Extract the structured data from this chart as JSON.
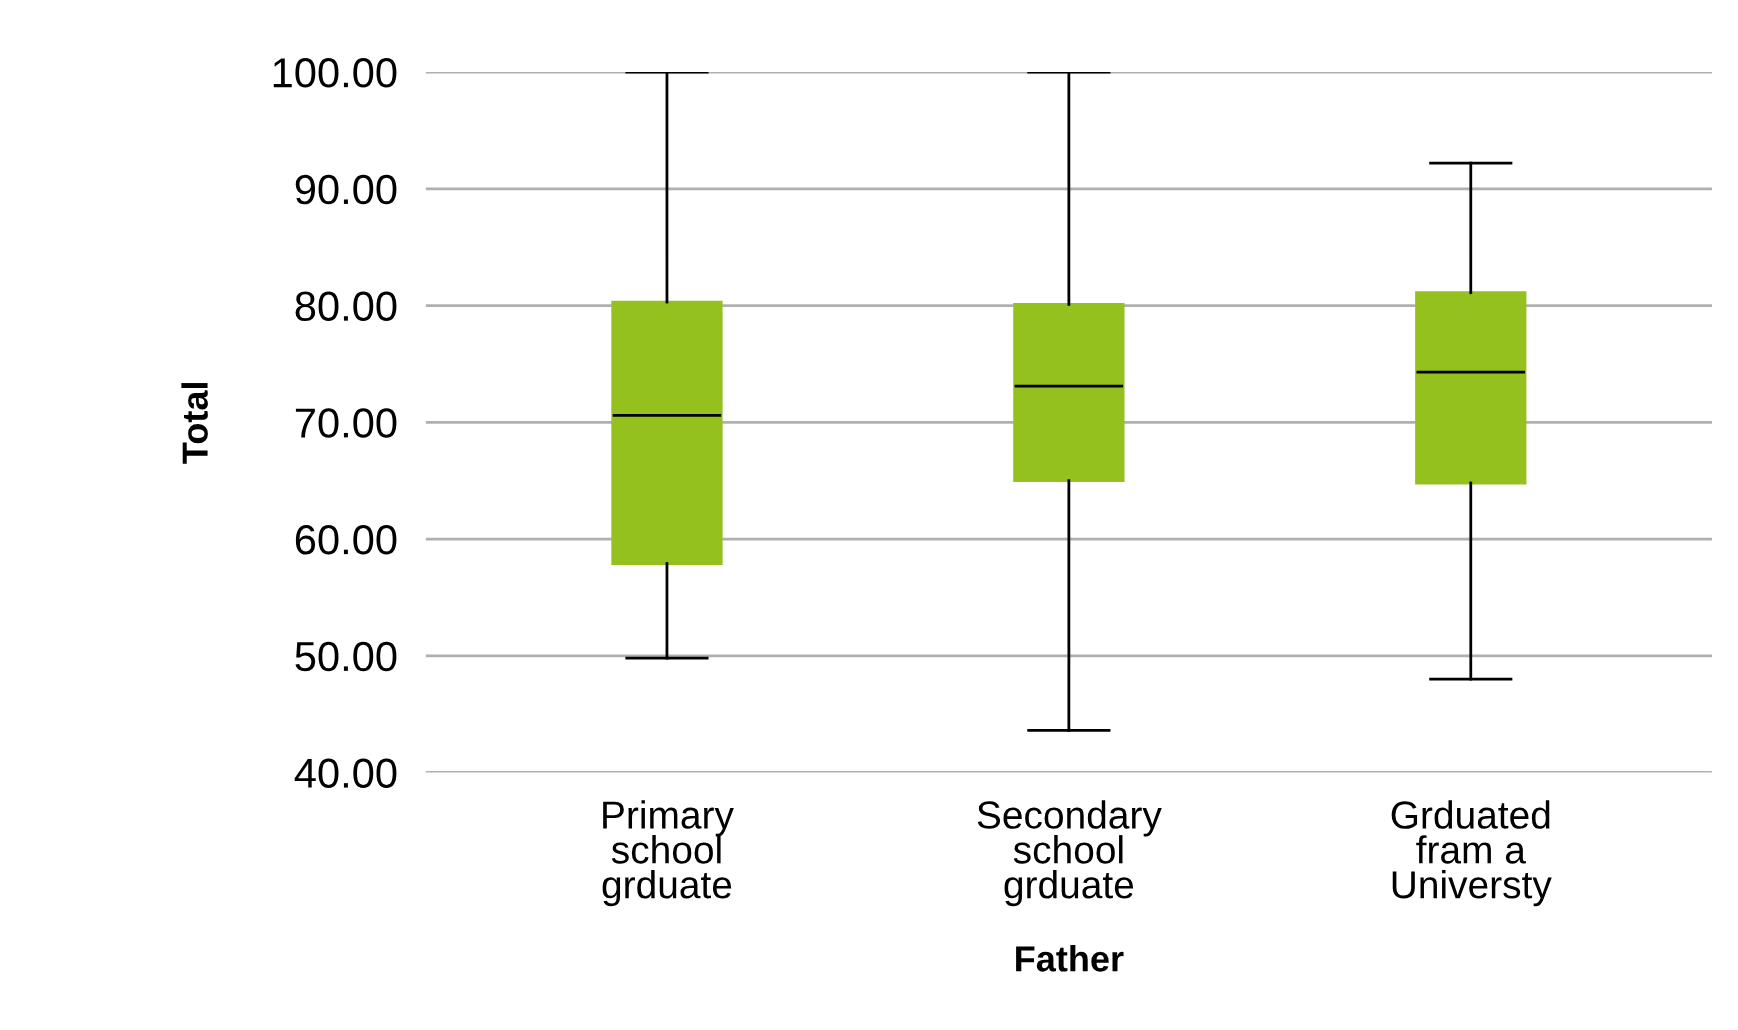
{
  "chart_data": {
    "type": "box",
    "xlabel": "Father",
    "ylabel": "Total",
    "categories": [
      "Primary\nschool\ngrduate",
      "Secondary\nschool\ngrduate",
      "Grduated\nfram a\nUniversty"
    ],
    "color": "#95c11f",
    "ylim": [
      40,
      100
    ],
    "yticks": [
      {
        "value": 40,
        "label": "40.00"
      },
      {
        "value": 50,
        "label": "50.00"
      },
      {
        "value": 60,
        "label": "60.00"
      },
      {
        "value": 70,
        "label": "70.00"
      },
      {
        "value": 80,
        "label": "80.00"
      },
      {
        "value": 90,
        "label": "90.00"
      },
      {
        "value": 100,
        "label": "100.00"
      }
    ],
    "grid": "y",
    "boxes": [
      {
        "low": 49.8,
        "q1": 57.9,
        "median": 70.6,
        "q3": 80.3,
        "high": 100
      },
      {
        "low": 43.6,
        "q1": 65.0,
        "median": 73.1,
        "q3": 80.1,
        "high": 100
      },
      {
        "low": 48.0,
        "q1": 64.8,
        "median": 74.3,
        "q3": 81.1,
        "high": 92.2
      }
    ]
  }
}
